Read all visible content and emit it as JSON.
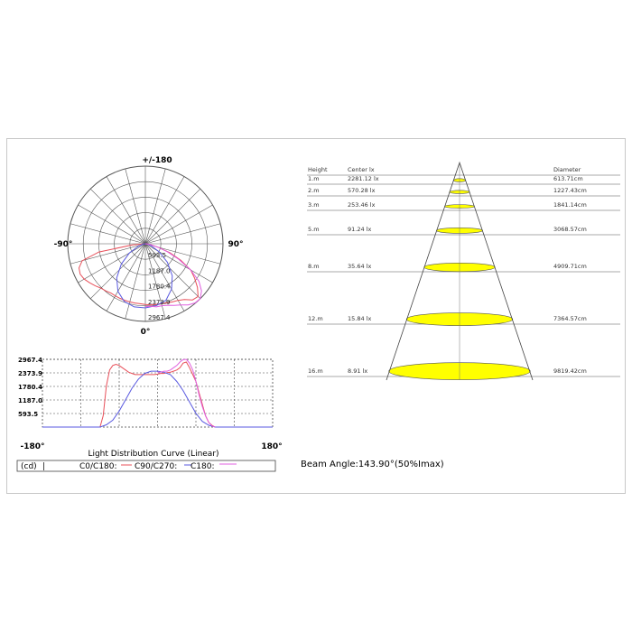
{
  "polar": {
    "label_top": "+/-180",
    "label_left": "-90°",
    "label_right": "90°",
    "label_bottom": "0°",
    "ring_labels": [
      "593.5",
      "1187.0",
      "1780.4",
      "2373.9",
      "2967.4"
    ],
    "rmax": 2967.4
  },
  "linear": {
    "y_ticks": [
      "2967.4",
      "2373.9",
      "1780.4",
      "1187.0",
      "593.5"
    ],
    "x_min_label": "-180°",
    "x_max_label": "180°",
    "title": "Light Distribution Curve (Linear)",
    "legend": {
      "unit": "(cd)",
      "sep": "|",
      "s1": "C0/C180:",
      "s2": "C90/C270:",
      "s3": "C180:"
    }
  },
  "illuminance": {
    "headers": {
      "height": "Height",
      "center": "Center lx",
      "diameter": "Diameter"
    },
    "rows": [
      {
        "height": "1.m",
        "lux": "2281.12 lx",
        "diameter": "613.71cm"
      },
      {
        "height": "2.m",
        "lux": "570.28 lx",
        "diameter": "1227.43cm"
      },
      {
        "height": "3.m",
        "lux": "253.46 lx",
        "diameter": "1841.14cm"
      },
      {
        "height": "5.m",
        "lux": "91.24 lx",
        "diameter": "3068.57cm"
      },
      {
        "height": "8.m",
        "lux": "35.64 lx",
        "diameter": "4909.71cm"
      },
      {
        "height": "12.m",
        "lux": "15.84 lx",
        "diameter": "7364.57cm"
      },
      {
        "height": "16.m",
        "lux": "8.91 lx",
        "diameter": "9819.42cm"
      }
    ],
    "beam_angle": "Beam Angle:143.90°(50%Imax)"
  },
  "colors": {
    "c0_c180": "#e8505a",
    "c90_c270": "#5a5ae0",
    "c180": "#e060e0",
    "ellipse_fill": "#ffff00",
    "grid": "#555555"
  },
  "chart_data": [
    {
      "type": "polar",
      "ring_values": [
        593.5,
        1187.0,
        1780.4,
        2373.9,
        2967.4
      ],
      "angle_labels": [
        "+/-180",
        "-90°",
        "90°",
        "0°"
      ],
      "series": [
        {
          "name": "C0/C180",
          "angles": [
            -90,
            -85,
            -80,
            -75,
            -70,
            -65,
            -60,
            -55,
            -50,
            -45,
            -40,
            -35,
            -30,
            -25,
            -20,
            -15,
            -10,
            -5,
            0,
            5,
            10,
            15,
            20,
            25,
            30,
            35,
            40,
            45,
            50,
            55,
            60,
            65,
            70,
            75,
            80,
            85,
            90
          ],
          "values": [
            0,
            500,
            1800,
            2500,
            2700,
            2750,
            2700,
            2600,
            2500,
            2400,
            2350,
            2300,
            2300,
            2300,
            2300,
            2300,
            2300,
            2300,
            2320,
            2350,
            2350,
            2380,
            2400,
            2450,
            2500,
            2600,
            2800,
            2850,
            2600,
            2300,
            2000,
            1500,
            1000,
            500,
            200,
            80,
            0
          ]
        },
        {
          "name": "C90/C270",
          "angles": [
            -90,
            -80,
            -70,
            -60,
            -50,
            -40,
            -30,
            -20,
            -10,
            0,
            10,
            20,
            30,
            40,
            50,
            60,
            70,
            80,
            90
          ],
          "values": [
            0,
            100,
            300,
            700,
            1200,
            1700,
            2100,
            2350,
            2450,
            2450,
            2400,
            2300,
            2000,
            1600,
            1100,
            600,
            250,
            80,
            0
          ]
        },
        {
          "name": "C180",
          "angles": [
            0,
            5,
            10,
            15,
            20,
            25,
            30,
            35,
            40,
            45,
            50,
            55,
            60,
            65,
            70,
            75,
            80,
            85,
            90
          ],
          "values": [
            2400,
            2400,
            2450,
            2450,
            2500,
            2600,
            2700,
            2850,
            2950,
            2967,
            2800,
            2500,
            2000,
            1400,
            900,
            500,
            200,
            50,
            0
          ]
        }
      ]
    },
    {
      "type": "line",
      "title": "Light Distribution Curve (Linear)",
      "xlim": [
        -180,
        180
      ],
      "ylim": [
        0,
        2967.4
      ],
      "y_ticks": [
        593.5,
        1187.0,
        1780.4,
        2373.9,
        2967.4
      ],
      "series": [
        {
          "name": "C0/C180",
          "x": [
            -180,
            -90,
            -85,
            -80,
            -75,
            -70,
            -65,
            -60,
            -55,
            -50,
            -45,
            -40,
            -35,
            -30,
            -25,
            -20,
            -15,
            -10,
            -5,
            0,
            5,
            10,
            15,
            20,
            25,
            30,
            35,
            40,
            45,
            50,
            55,
            60,
            65,
            70,
            75,
            80,
            85,
            90,
            180
          ],
          "values": [
            0,
            0,
            500,
            1800,
            2500,
            2700,
            2750,
            2700,
            2600,
            2500,
            2400,
            2350,
            2300,
            2300,
            2300,
            2300,
            2300,
            2300,
            2300,
            2320,
            2350,
            2350,
            2380,
            2400,
            2450,
            2500,
            2600,
            2800,
            2850,
            2600,
            2300,
            2000,
            1500,
            1000,
            500,
            200,
            80,
            0,
            0
          ]
        },
        {
          "name": "C90/C270",
          "x": [
            -180,
            -90,
            -80,
            -70,
            -60,
            -50,
            -40,
            -30,
            -20,
            -10,
            0,
            10,
            20,
            30,
            40,
            50,
            60,
            70,
            80,
            90,
            180
          ],
          "values": [
            0,
            0,
            100,
            300,
            700,
            1200,
            1700,
            2100,
            2350,
            2450,
            2450,
            2400,
            2300,
            2000,
            1600,
            1100,
            600,
            250,
            80,
            0,
            0
          ]
        },
        {
          "name": "C180",
          "x": [
            -180,
            0,
            5,
            10,
            15,
            20,
            25,
            30,
            35,
            40,
            45,
            50,
            55,
            60,
            65,
            70,
            75,
            80,
            85,
            90,
            180
          ],
          "values": [
            null,
            2400,
            2400,
            2450,
            2450,
            2500,
            2600,
            2700,
            2850,
            2950,
            2967,
            2800,
            2500,
            2000,
            1400,
            900,
            500,
            200,
            50,
            0,
            null
          ]
        }
      ]
    },
    {
      "type": "table",
      "columns": [
        "Height",
        "Center lx",
        "Diameter"
      ],
      "rows": [
        [
          "1.m",
          "2281.12 lx",
          "613.71cm"
        ],
        [
          "2.m",
          "570.28 lx",
          "1227.43cm"
        ],
        [
          "3.m",
          "253.46 lx",
          "1841.14cm"
        ],
        [
          "5.m",
          "91.24 lx",
          "3068.57cm"
        ],
        [
          "8.m",
          "35.64 lx",
          "4909.71cm"
        ],
        [
          "12.m",
          "15.84 lx",
          "7364.57cm"
        ],
        [
          "16.m",
          "8.91 lx",
          "9819.42cm"
        ]
      ],
      "beam_angle_deg": 143.9
    }
  ]
}
